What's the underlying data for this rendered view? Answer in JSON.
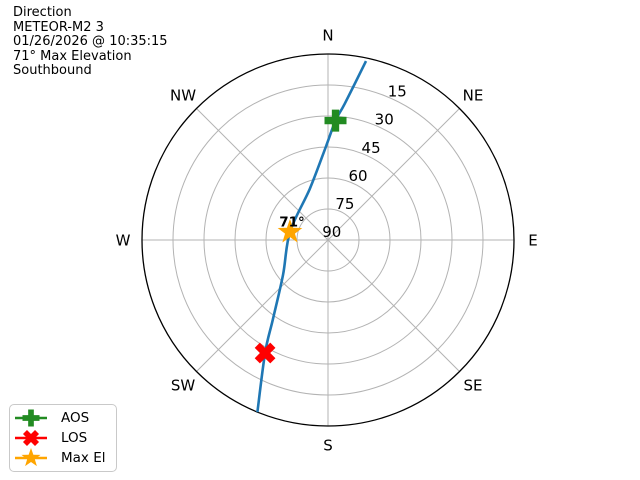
{
  "header": {
    "lines": [
      "Direction",
      "METEOR-M2 3",
      "01/26/2026 @ 10:35:15",
      "71° Max Elevation",
      "Southbound"
    ]
  },
  "chart_data": {
    "type": "polar",
    "title": "Direction",
    "satellite": "METEOR-M2 3",
    "timestamp": "01/26/2026 @ 10:35:15",
    "max_elevation_deg": 71,
    "pass_direction": "Southbound",
    "compass_labels": [
      "N",
      "NE",
      "E",
      "SE",
      "S",
      "SW",
      "W",
      "NW"
    ],
    "elevation_ticks": [
      15,
      30,
      45,
      60,
      75,
      90
    ],
    "elevation_range": [
      0,
      90
    ],
    "grid_on": true,
    "track_color": "#1f77b4",
    "grid_color": "#b3b3b3",
    "horizon_color": "#000000",
    "track_azel": [
      [
        12.0,
        1.5
      ],
      [
        7.0,
        23.6
      ],
      [
        3.6,
        32.1
      ],
      [
        358.8,
        44.7
      ],
      [
        340.2,
        63.8
      ],
      [
        281.9,
        71.2
      ],
      [
        232.1,
        62.4
      ],
      [
        214.7,
        43.1
      ],
      [
        209.1,
        27.4
      ],
      [
        202.3,
        0.0
      ]
    ],
    "markers": [
      {
        "name": "aos",
        "az": 3.6,
        "el": 32.1,
        "shape": "plus",
        "color": "#228b22",
        "annotation": ""
      },
      {
        "name": "los",
        "az": 209.1,
        "el": 27.4,
        "shape": "x",
        "color": "#ff0000",
        "annotation": ""
      },
      {
        "name": "max-el",
        "az": 281.9,
        "el": 71.2,
        "shape": "star",
        "color": "#ffa500",
        "annotation": "71°"
      }
    ]
  },
  "legend": {
    "items": [
      {
        "label": "AOS",
        "shape": "plus",
        "color": "#228b22"
      },
      {
        "label": "LOS",
        "shape": "x",
        "color": "#ff0000"
      },
      {
        "label": "Max El",
        "shape": "star",
        "color": "#ffa500"
      }
    ],
    "position": "lower left"
  }
}
